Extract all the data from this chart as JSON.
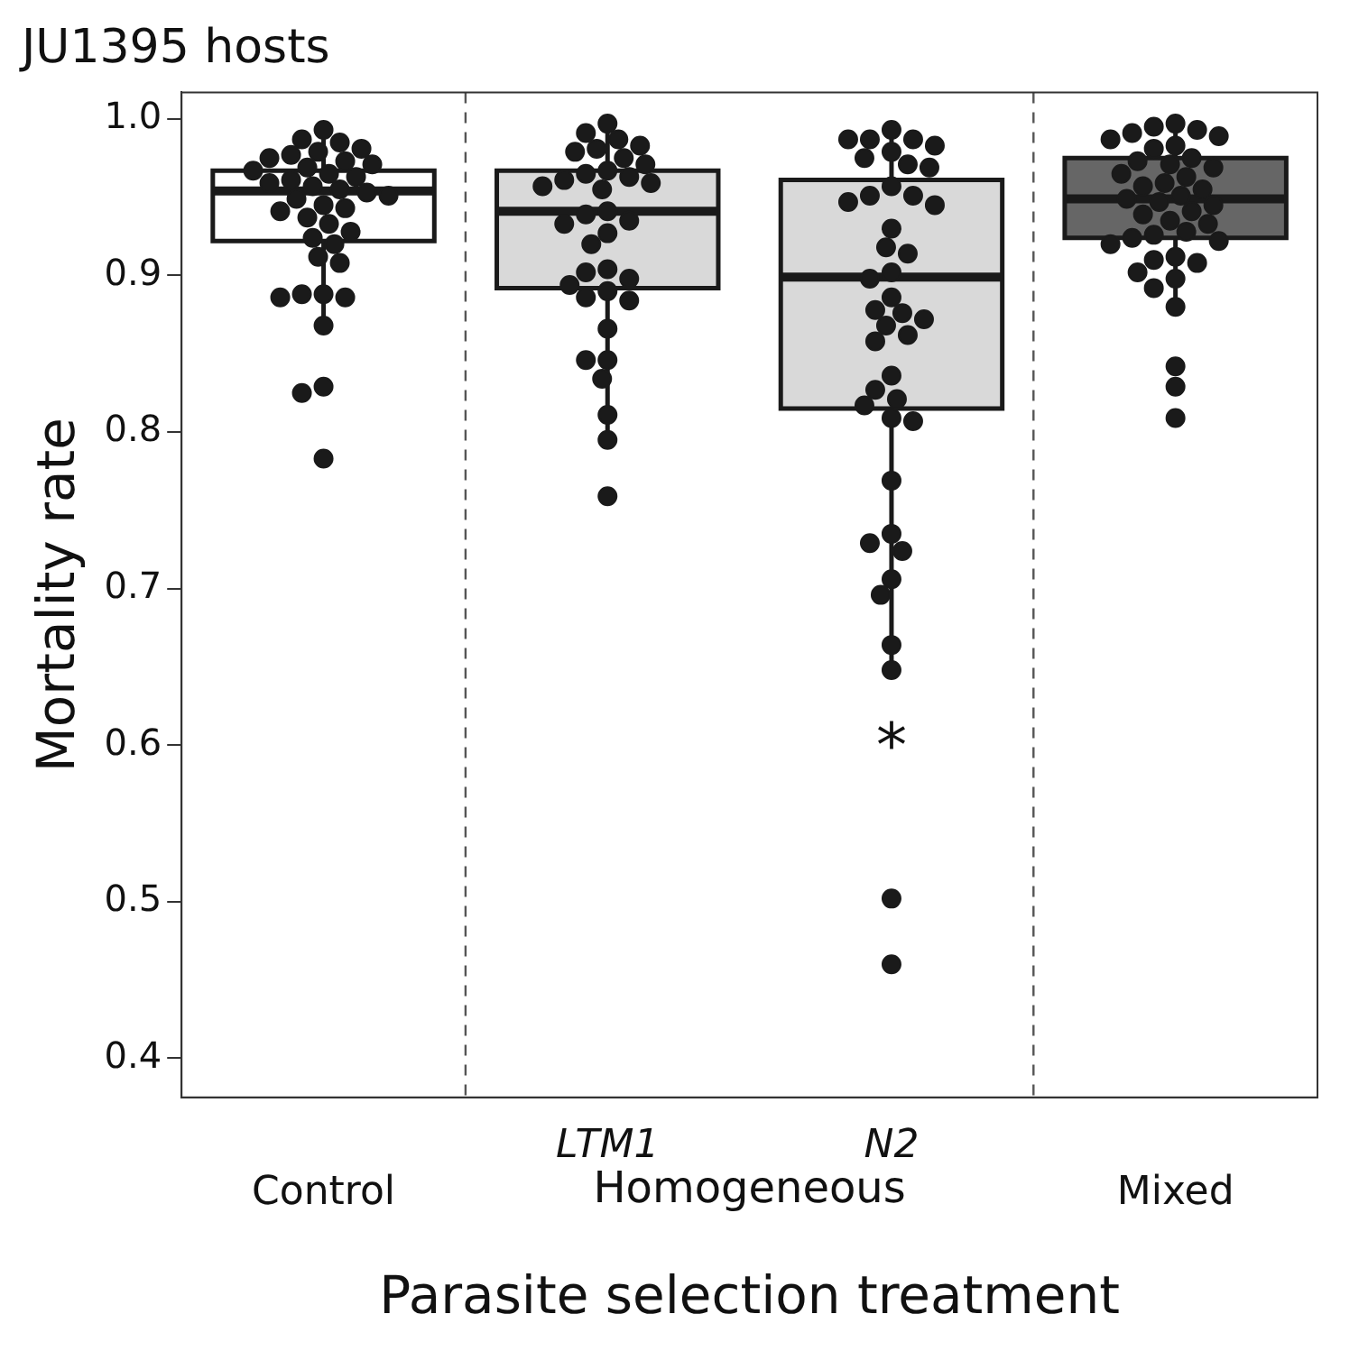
{
  "chart_data": {
    "type": "box",
    "title": "JU1395 hosts",
    "xlabel": "Parasite selection treatment",
    "ylabel": "Mortality rate",
    "categories": [
      "Control",
      "LTM1",
      "N2",
      "Mixed"
    ],
    "ylim": [
      0.375,
      1.017
    ],
    "yticks": [
      {
        "value": 0.4,
        "label": "0.4"
      },
      {
        "value": 0.5,
        "label": "0.5"
      },
      {
        "value": 0.6,
        "label": "0.6"
      },
      {
        "value": 0.7,
        "label": "0.7"
      },
      {
        "value": 0.8,
        "label": "0.8"
      },
      {
        "value": 0.9,
        "label": "0.9"
      },
      {
        "value": 1,
        "label": "1.0"
      }
    ],
    "grid": false,
    "legend": false,
    "annotations": [
      "Homogeneous",
      "*"
    ],
    "series": [
      {
        "type": "box",
        "colors": [
          "#ffffff",
          "#d9d9d9",
          "#d9d9d9",
          "#666666"
        ],
        "boxes": [
          {
            "low": 0.869,
            "q1": 0.922,
            "median": 0.954,
            "q3": 0.967,
            "high": 0.993
          },
          {
            "low": 0.795,
            "q1": 0.892,
            "median": 0.941,
            "q3": 0.967,
            "high": 0.997
          },
          {
            "low": 0.647,
            "q1": 0.815,
            "median": 0.899,
            "q3": 0.961,
            "high": 0.993
          },
          {
            "low": 0.88,
            "q1": 0.924,
            "median": 0.949,
            "q3": 0.975,
            "high": 0.997
          }
        ]
      },
      {
        "type": "scatter",
        "color": "#1a1a1a",
        "marker": "circle",
        "x": [
          "Control",
          "Control",
          "Control",
          "Control",
          "Control",
          "Control",
          "Control",
          "Control",
          "Control",
          "Control",
          "Control",
          "Control",
          "Control",
          "Control",
          "Control",
          "Control",
          "Control",
          "Control",
          "Control",
          "Control",
          "Control",
          "Control",
          "Control",
          "Control",
          "Control",
          "Control",
          "Control",
          "Control",
          "Control",
          "Control",
          "Control",
          "Control",
          "Control",
          "Control",
          "Control",
          "Control",
          "Control",
          "Control"
        ],
        "values": [
          0.993,
          0.987,
          0.985,
          0.981,
          0.979,
          0.977,
          0.975,
          0.973,
          0.971,
          0.969,
          0.967,
          0.965,
          0.963,
          0.961,
          0.959,
          0.957,
          0.955,
          0.953,
          0.951,
          0.949,
          0.945,
          0.943,
          0.941,
          0.937,
          0.933,
          0.928,
          0.924,
          0.92,
          0.912,
          0.908,
          0.888,
          0.888,
          0.886,
          0.886,
          0.868,
          0.829,
          0.825,
          0.783
        ]
      },
      {
        "type": "scatter",
        "color": "#1a1a1a",
        "marker": "circle",
        "x": [
          "LTM1",
          "LTM1",
          "LTM1",
          "LTM1",
          "LTM1",
          "LTM1",
          "LTM1",
          "LTM1",
          "LTM1",
          "LTM1",
          "LTM1",
          "LTM1",
          "LTM1",
          "LTM1",
          "LTM1",
          "LTM1",
          "LTM1",
          "LTM1",
          "LTM1",
          "LTM1",
          "LTM1",
          "LTM1",
          "LTM1",
          "LTM1",
          "LTM1",
          "LTM1",
          "LTM1",
          "LTM1",
          "LTM1",
          "LTM1",
          "LTM1",
          "LTM1",
          "LTM1",
          "LTM1",
          "LTM1"
        ],
        "values": [
          0.997,
          0.991,
          0.987,
          0.983,
          0.981,
          0.979,
          0.975,
          0.971,
          0.967,
          0.965,
          0.963,
          0.961,
          0.959,
          0.957,
          0.955,
          0.941,
          0.939,
          0.935,
          0.933,
          0.927,
          0.92,
          0.904,
          0.902,
          0.898,
          0.894,
          0.89,
          0.886,
          0.884,
          0.866,
          0.846,
          0.846,
          0.834,
          0.811,
          0.795,
          0.759
        ]
      },
      {
        "type": "scatter",
        "color": "#1a1a1a",
        "marker": "circle",
        "x": [
          "N2",
          "N2",
          "N2",
          "N2",
          "N2",
          "N2",
          "N2",
          "N2",
          "N2",
          "N2",
          "N2",
          "N2",
          "N2",
          "N2",
          "N2",
          "N2",
          "N2",
          "N2",
          "N2",
          "N2",
          "N2",
          "N2",
          "N2",
          "N2",
          "N2",
          "N2",
          "N2",
          "N2",
          "N2",
          "N2",
          "N2",
          "N2",
          "N2",
          "N2",
          "N2",
          "N2",
          "N2",
          "N2",
          "N2",
          "N2",
          "N2",
          "N2"
        ],
        "values": [
          0.993,
          0.987,
          0.987,
          0.987,
          0.983,
          0.979,
          0.975,
          0.971,
          0.969,
          0.957,
          0.951,
          0.951,
          0.947,
          0.945,
          0.93,
          0.918,
          0.914,
          0.902,
          0.898,
          0.886,
          0.878,
          0.876,
          0.872,
          0.868,
          0.862,
          0.858,
          0.836,
          0.827,
          0.821,
          0.817,
          0.809,
          0.807,
          0.769,
          0.735,
          0.729,
          0.724,
          0.706,
          0.696,
          0.664,
          0.648,
          0.502,
          0.46
        ]
      },
      {
        "type": "scatter",
        "color": "#1a1a1a",
        "marker": "circle",
        "x": [
          "Mixed",
          "Mixed",
          "Mixed",
          "Mixed",
          "Mixed",
          "Mixed",
          "Mixed",
          "Mixed",
          "Mixed",
          "Mixed",
          "Mixed",
          "Mixed",
          "Mixed",
          "Mixed",
          "Mixed",
          "Mixed",
          "Mixed",
          "Mixed",
          "Mixed",
          "Mixed",
          "Mixed",
          "Mixed",
          "Mixed",
          "Mixed",
          "Mixed",
          "Mixed",
          "Mixed",
          "Mixed",
          "Mixed",
          "Mixed",
          "Mixed",
          "Mixed",
          "Mixed",
          "Mixed",
          "Mixed",
          "Mixed",
          "Mixed",
          "Mixed",
          "Mixed",
          "Mixed"
        ],
        "values": [
          0.997,
          0.995,
          0.993,
          0.991,
          0.989,
          0.987,
          0.983,
          0.981,
          0.975,
          0.973,
          0.971,
          0.969,
          0.965,
          0.963,
          0.959,
          0.957,
          0.955,
          0.951,
          0.949,
          0.947,
          0.945,
          0.941,
          0.939,
          0.935,
          0.933,
          0.928,
          0.926,
          0.924,
          0.922,
          0.92,
          0.912,
          0.91,
          0.908,
          0.902,
          0.898,
          0.892,
          0.88,
          0.842,
          0.829,
          0.809
        ]
      }
    ]
  }
}
